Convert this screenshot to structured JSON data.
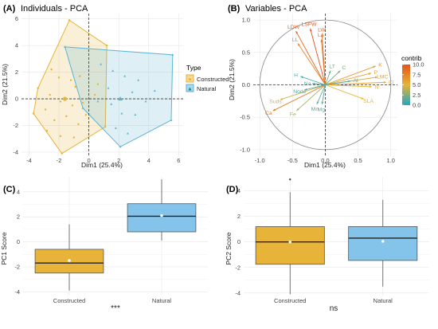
{
  "chart_data": [
    {
      "panel": "(A)",
      "type": "scatter",
      "title": "Individuals - PCA",
      "xlabel": "Dim1 (25.4%)",
      "ylabel": "Dim2 (21.5%)",
      "xlim": [
        -4.5,
        6.3
      ],
      "ylim": [
        -4.3,
        6.4
      ],
      "xticks": [
        -4,
        -2,
        0,
        2,
        4,
        6
      ],
      "yticks": [
        -4,
        -2,
        0,
        2,
        4,
        6
      ],
      "legend": {
        "title": "Type",
        "position": "right"
      },
      "series": [
        {
          "name": "Constructed",
          "color": "#e8b339",
          "centroid": [
            -1.6,
            0
          ],
          "hull": [
            [
              -1.3,
              5.9
            ],
            [
              1.2,
              4.0
            ],
            [
              1.1,
              -2.1
            ],
            [
              -1.8,
              -4.1
            ],
            [
              -3.7,
              -1.1
            ],
            [
              -3.4,
              0.8
            ]
          ],
          "points": [
            [
              -1.3,
              5.9
            ],
            [
              1.2,
              4.0
            ],
            [
              -3.4,
              0.8
            ],
            [
              -3.7,
              -1.1
            ],
            [
              -1.8,
              -4.1
            ],
            [
              1.1,
              -2.1
            ],
            [
              -2.5,
              2.2
            ],
            [
              -2.0,
              1.6
            ],
            [
              -1.2,
              1.4
            ],
            [
              -0.6,
              1.7
            ],
            [
              -0.9,
              0.9
            ],
            [
              -2.6,
              0.3
            ],
            [
              -1.9,
              -0.2
            ],
            [
              -1.1,
              -0.5
            ],
            [
              -0.4,
              -0.3
            ],
            [
              -2.9,
              -0.8
            ],
            [
              -2.3,
              -1.6
            ],
            [
              -1.5,
              -1.3
            ],
            [
              -0.7,
              -1.9
            ],
            [
              -2.8,
              -2.4
            ],
            [
              -1.9,
              -2.8
            ],
            [
              -1.0,
              -2.9
            ],
            [
              -0.2,
              -1.2
            ],
            [
              0.4,
              0.3
            ],
            [
              0.6,
              1.1
            ]
          ]
        },
        {
          "name": "Natural",
          "color": "#5ab4d4",
          "centroid": [
            2.1,
            0
          ],
          "hull": [
            [
              -1.6,
              3.9
            ],
            [
              5.6,
              3.3
            ],
            [
              5.5,
              -1.6
            ],
            [
              2.1,
              -3.6
            ],
            [
              -0.4,
              -0.7
            ]
          ],
          "points": [
            [
              -1.6,
              3.9
            ],
            [
              5.6,
              3.3
            ],
            [
              5.5,
              -1.6
            ],
            [
              2.1,
              -3.6
            ],
            [
              -0.4,
              -0.7
            ],
            [
              0.8,
              2.6
            ],
            [
              1.6,
              2.1
            ],
            [
              2.4,
              1.7
            ],
            [
              3.3,
              1.4
            ],
            [
              1.3,
              0.8
            ],
            [
              2.9,
              0.5
            ],
            [
              3.8,
              -0.2
            ],
            [
              1.5,
              -0.4
            ],
            [
              2.2,
              -1.1
            ],
            [
              3.1,
              -1.2
            ],
            [
              1.8,
              -2.2
            ],
            [
              2.6,
              -2.6
            ],
            [
              4.4,
              0.6
            ],
            [
              0.6,
              -0.2
            ]
          ]
        }
      ]
    },
    {
      "panel": "(B)",
      "type": "biplot",
      "title": "Variables - PCA",
      "xlabel": "Dim1 (25.4%)",
      "ylabel": "Dim2 (21.5%)",
      "xlim": [
        -1.1,
        1.1
      ],
      "ylim": [
        -1.1,
        1.1
      ],
      "xticks": [
        -1.0,
        -0.5,
        0.0,
        0.5,
        1.0
      ],
      "yticks": [
        -1.0,
        -0.5,
        0.0,
        0.5,
        1.0
      ],
      "color_scale": {
        "name": "contrib",
        "min": 0,
        "max": 10,
        "ticks": [
          0.0,
          2.5,
          5.0,
          7.5,
          10.0
        ],
        "colors": [
          "#22a7c2",
          "#e7b338",
          "#e4531a"
        ]
      },
      "variables": [
        {
          "name": "LSFW",
          "x": -0.23,
          "y": 0.87,
          "contrib": 10.0
        },
        {
          "name": "LDW",
          "x": -0.45,
          "y": 0.83,
          "contrib": 9.0
        },
        {
          "name": "LW",
          "x": -0.05,
          "y": 0.78,
          "contrib": 8.5
        },
        {
          "name": "LA",
          "x": -0.06,
          "y": 0.7,
          "contrib": 8.0
        },
        {
          "name": "LL",
          "x": -0.42,
          "y": 0.64,
          "contrib": 7.5
        },
        {
          "name": "K",
          "x": 0.77,
          "y": 0.29,
          "contrib": 6.5
        },
        {
          "name": "LMC",
          "x": 0.8,
          "y": 0.12,
          "contrib": 6.0
        },
        {
          "name": "P",
          "x": 0.7,
          "y": 0.18,
          "contrib": 6.0
        },
        {
          "name": "Cl",
          "x": 0.93,
          "y": 0.04,
          "contrib": 5.5
        },
        {
          "name": "N",
          "x": 0.71,
          "y": -0.03,
          "contrib": 5.0
        },
        {
          "name": "SLA",
          "x": 0.59,
          "y": -0.22,
          "contrib": 5.0
        },
        {
          "name": "Ca",
          "x": -0.8,
          "y": -0.4,
          "contrib": 8.0
        },
        {
          "name": "Suds",
          "x": -0.69,
          "y": -0.23,
          "contrib": 4.5
        },
        {
          "name": "Fe",
          "x": -0.44,
          "y": -0.4,
          "contrib": 3.5
        },
        {
          "name": "Mn",
          "x": -0.13,
          "y": -0.3,
          "contrib": 1.5
        },
        {
          "name": "Mg",
          "x": -0.05,
          "y": -0.3,
          "contrib": 1.5
        },
        {
          "name": "Node",
          "x": -0.32,
          "y": -0.08,
          "contrib": 1.0
        },
        {
          "name": "H",
          "x": -0.38,
          "y": 0.13,
          "contrib": 1.0
        },
        {
          "name": "Na",
          "x": -0.2,
          "y": 0.02,
          "contrib": 1.0
        },
        {
          "name": "LT",
          "x": 0.08,
          "y": 0.22,
          "contrib": 2.0
        },
        {
          "name": "C",
          "x": 0.23,
          "y": 0.22,
          "contrib": 2.0
        },
        {
          "name": "Al",
          "x": 0.39,
          "y": 0.06,
          "contrib": 1.5
        }
      ]
    },
    {
      "panel": "(C)",
      "type": "box",
      "xlabel": "",
      "ylabel": "PC1 Score",
      "ylim": [
        -4.3,
        5.2
      ],
      "yticks": [
        -4,
        -2,
        0,
        2,
        4
      ],
      "categories": [
        "Constructed",
        "Natural"
      ],
      "colors": [
        "#e8b339",
        "#85c4ea"
      ],
      "boxes": [
        {
          "min": -3.9,
          "q1": -2.5,
          "median": -1.7,
          "q3": -0.6,
          "max": 1.4,
          "mean": -1.5
        },
        {
          "min": 0.1,
          "q1": 0.8,
          "median": 2.05,
          "q3": 3.05,
          "max": 5.0,
          "mean": 2.1
        }
      ],
      "annotation": "***"
    },
    {
      "panel": "(D)",
      "type": "box",
      "xlabel": "",
      "ylabel": "PC2 Score",
      "ylim": [
        -4.2,
        5.1
      ],
      "yticks": [
        -4,
        -2,
        0,
        2,
        4
      ],
      "categories": [
        "Constructed",
        "Natural"
      ],
      "colors": [
        "#e8b339",
        "#85c4ea"
      ],
      "boxes": [
        {
          "min": -4.1,
          "q1": -1.75,
          "median": 0.0,
          "q3": 1.2,
          "max": 3.9,
          "mean": 0.0,
          "outliers": [
            4.9
          ]
        },
        {
          "min": -3.5,
          "q1": -1.45,
          "median": 0.3,
          "q3": 1.2,
          "max": 3.3,
          "mean": 0.05
        }
      ],
      "annotation": "ns"
    }
  ]
}
